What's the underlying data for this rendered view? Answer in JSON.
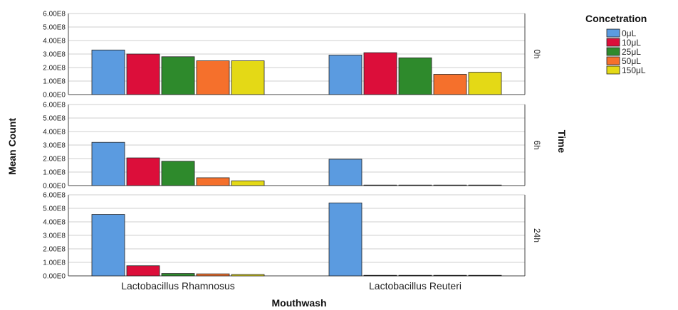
{
  "chart_data": {
    "type": "bar",
    "xlabel": "Mouthwash",
    "ylabel": "Mean Count",
    "facet_label": "Time",
    "legend_title": "Concetration",
    "legend_position": "top-right",
    "categories": [
      "Lactobacillus Rhamnosus",
      "Lactobacillus Reuteri"
    ],
    "series": [
      {
        "name": "0μL",
        "color": "#5b9be0"
      },
      {
        "name": "10μL",
        "color": "#dc0e3a"
      },
      {
        "name": "25μL",
        "color": "#2e8a2c"
      },
      {
        "name": "50μL",
        "color": "#f5702c"
      },
      {
        "name": "150μL",
        "color": "#e4d916"
      }
    ],
    "yticks": [
      "0.00E0",
      "1.00E8",
      "2.00E8",
      "3.00E8",
      "4.00E8",
      "5.00E8",
      "6.00E8"
    ],
    "ylim": [
      0,
      600000000
    ],
    "grid": true,
    "panels": [
      {
        "label": "0h",
        "values": [
          [
            330000000,
            300000000,
            280000000,
            250000000,
            250000000
          ],
          [
            292000000,
            310000000,
            272000000,
            150000000,
            165000000
          ]
        ]
      },
      {
        "label": "6h",
        "values": [
          [
            320000000,
            205000000,
            180000000,
            58000000,
            35000000
          ],
          [
            195000000,
            0,
            0,
            0,
            0
          ]
        ]
      },
      {
        "label": "24h",
        "values": [
          [
            455000000,
            75000000,
            18000000,
            15000000,
            10000000
          ],
          [
            540000000,
            0,
            0,
            0,
            0
          ]
        ]
      }
    ]
  }
}
